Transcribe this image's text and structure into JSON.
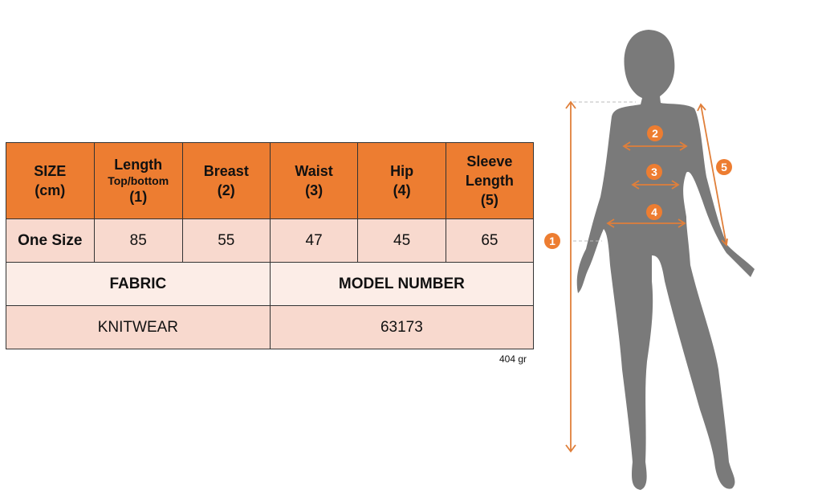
{
  "table": {
    "headers": [
      {
        "label": "SIZE",
        "sub": "",
        "line2": "(cm)"
      },
      {
        "label": "Length",
        "sub": "Top/bottom",
        "line2": "(1)"
      },
      {
        "label": "Breast",
        "sub": "",
        "line2": "(2)"
      },
      {
        "label": "Waist",
        "sub": "",
        "line2": "(3)"
      },
      {
        "label": "Hip",
        "sub": "",
        "line2": "(4)"
      },
      {
        "label": "Sleeve Length",
        "sub": "",
        "line2": "(5)"
      }
    ],
    "row": [
      "One Size",
      "85",
      "55",
      "47",
      "45",
      "65"
    ],
    "fabric_label": "FABRIC",
    "model_label": "MODEL NUMBER",
    "fabric_value": "KNITWEAR",
    "model_value": "63173"
  },
  "weight": "404 gr",
  "diagram": {
    "markers": [
      "1",
      "2",
      "3",
      "4",
      "5"
    ],
    "accent": "#ED7D31",
    "silhouette": "#7A7A7A"
  }
}
